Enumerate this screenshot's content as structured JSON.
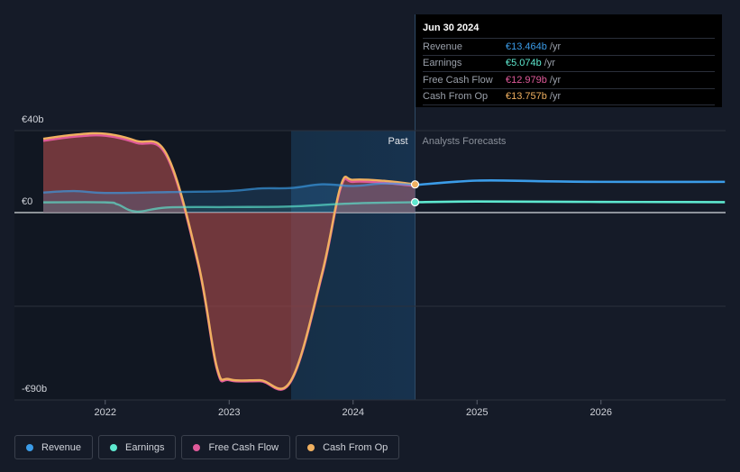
{
  "tooltip": {
    "date": "Jun 30 2024",
    "rows": [
      {
        "name": "Revenue",
        "value": "€13.464b",
        "unit": "/yr",
        "color": "#3b9ce8"
      },
      {
        "name": "Earnings",
        "value": "€5.074b",
        "unit": "/yr",
        "color": "#5ee8cf"
      },
      {
        "name": "Free Cash Flow",
        "value": "€12.979b",
        "unit": "/yr",
        "color": "#e05a9a"
      },
      {
        "name": "Cash From Op",
        "value": "€13.757b",
        "unit": "/yr",
        "color": "#f0b060"
      }
    ]
  },
  "regions": {
    "past": "Past",
    "forecast": "Analysts Forecasts"
  },
  "legend": [
    {
      "name": "Revenue",
      "color": "#3b9ce8"
    },
    {
      "name": "Earnings",
      "color": "#5ee8cf"
    },
    {
      "name": "Free Cash Flow",
      "color": "#e05a9a"
    },
    {
      "name": "Cash From Op",
      "color": "#f0b060"
    }
  ],
  "chart_data": {
    "type": "line",
    "x_range": [
      2021.5,
      2027.0
    ],
    "ylim": [
      -90,
      40
    ],
    "y_tick_labels": [
      {
        "value": 40,
        "label": "€40b"
      },
      {
        "value": 0,
        "label": "€0"
      },
      {
        "value": -90,
        "label": "-€90b"
      }
    ],
    "x_ticks": [
      2022,
      2023,
      2024,
      2025,
      2026
    ],
    "x_tick_labels": [
      "2022",
      "2023",
      "2024",
      "2025",
      "2026"
    ],
    "past_end": 2024.5,
    "highlight_start": 2023.5,
    "series": [
      {
        "name": "Revenue",
        "color": "#3b9ce8",
        "x": [
          2021.5,
          2021.75,
          2022.0,
          2022.5,
          2023.0,
          2023.25,
          2023.5,
          2023.75,
          2024.0,
          2024.25,
          2024.5,
          2025.0,
          2025.5,
          2026.0,
          2027.0
        ],
        "y": [
          9.8,
          10.5,
          9.6,
          10.0,
          10.5,
          11.8,
          12.0,
          13.8,
          13.0,
          14.2,
          13.46,
          15.6,
          15.3,
          15.0,
          15.0
        ]
      },
      {
        "name": "Earnings",
        "color": "#5ee8cf",
        "x": [
          2021.5,
          2022.0,
          2022.1,
          2022.25,
          2022.5,
          2023.0,
          2023.5,
          2024.0,
          2024.5,
          2025.0,
          2026.0,
          2027.0
        ],
        "y": [
          5.0,
          5.0,
          4.0,
          0.5,
          2.5,
          2.7,
          3.0,
          4.5,
          5.07,
          5.4,
          5.2,
          5.1
        ]
      },
      {
        "name": "Free Cash Flow",
        "color": "#e05a9a",
        "x": [
          2021.5,
          2021.75,
          2022.0,
          2022.25,
          2022.5,
          2022.75,
          2022.9,
          2023.0,
          2023.25,
          2023.5,
          2023.75,
          2023.9,
          2024.0,
          2024.25,
          2024.5
        ],
        "y": [
          35.0,
          37.0,
          37.5,
          34.0,
          27.0,
          -25.0,
          -75.0,
          -80.5,
          -81.0,
          -81.0,
          -30.0,
          12.0,
          15.0,
          14.5,
          12.98
        ]
      },
      {
        "name": "Cash From Op",
        "color": "#f0b060",
        "x": [
          2021.5,
          2021.75,
          2022.0,
          2022.25,
          2022.5,
          2022.75,
          2022.9,
          2023.0,
          2023.25,
          2023.5,
          2023.75,
          2023.9,
          2024.0,
          2024.25,
          2024.5
        ],
        "y": [
          36.0,
          38.0,
          38.5,
          35.0,
          28.0,
          -24.0,
          -74.0,
          -80.0,
          -80.5,
          -80.5,
          -29.0,
          13.0,
          16.0,
          15.5,
          13.76
        ]
      }
    ]
  }
}
